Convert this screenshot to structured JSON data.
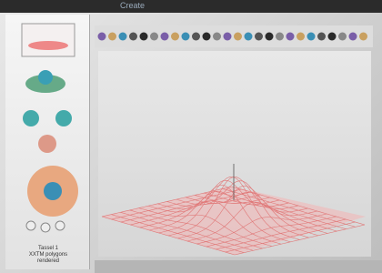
{
  "window": {
    "title": "Create"
  },
  "sidebar": {
    "caption": [
      "Tassel 1",
      "XXTM polygons",
      "rendered"
    ]
  }
}
